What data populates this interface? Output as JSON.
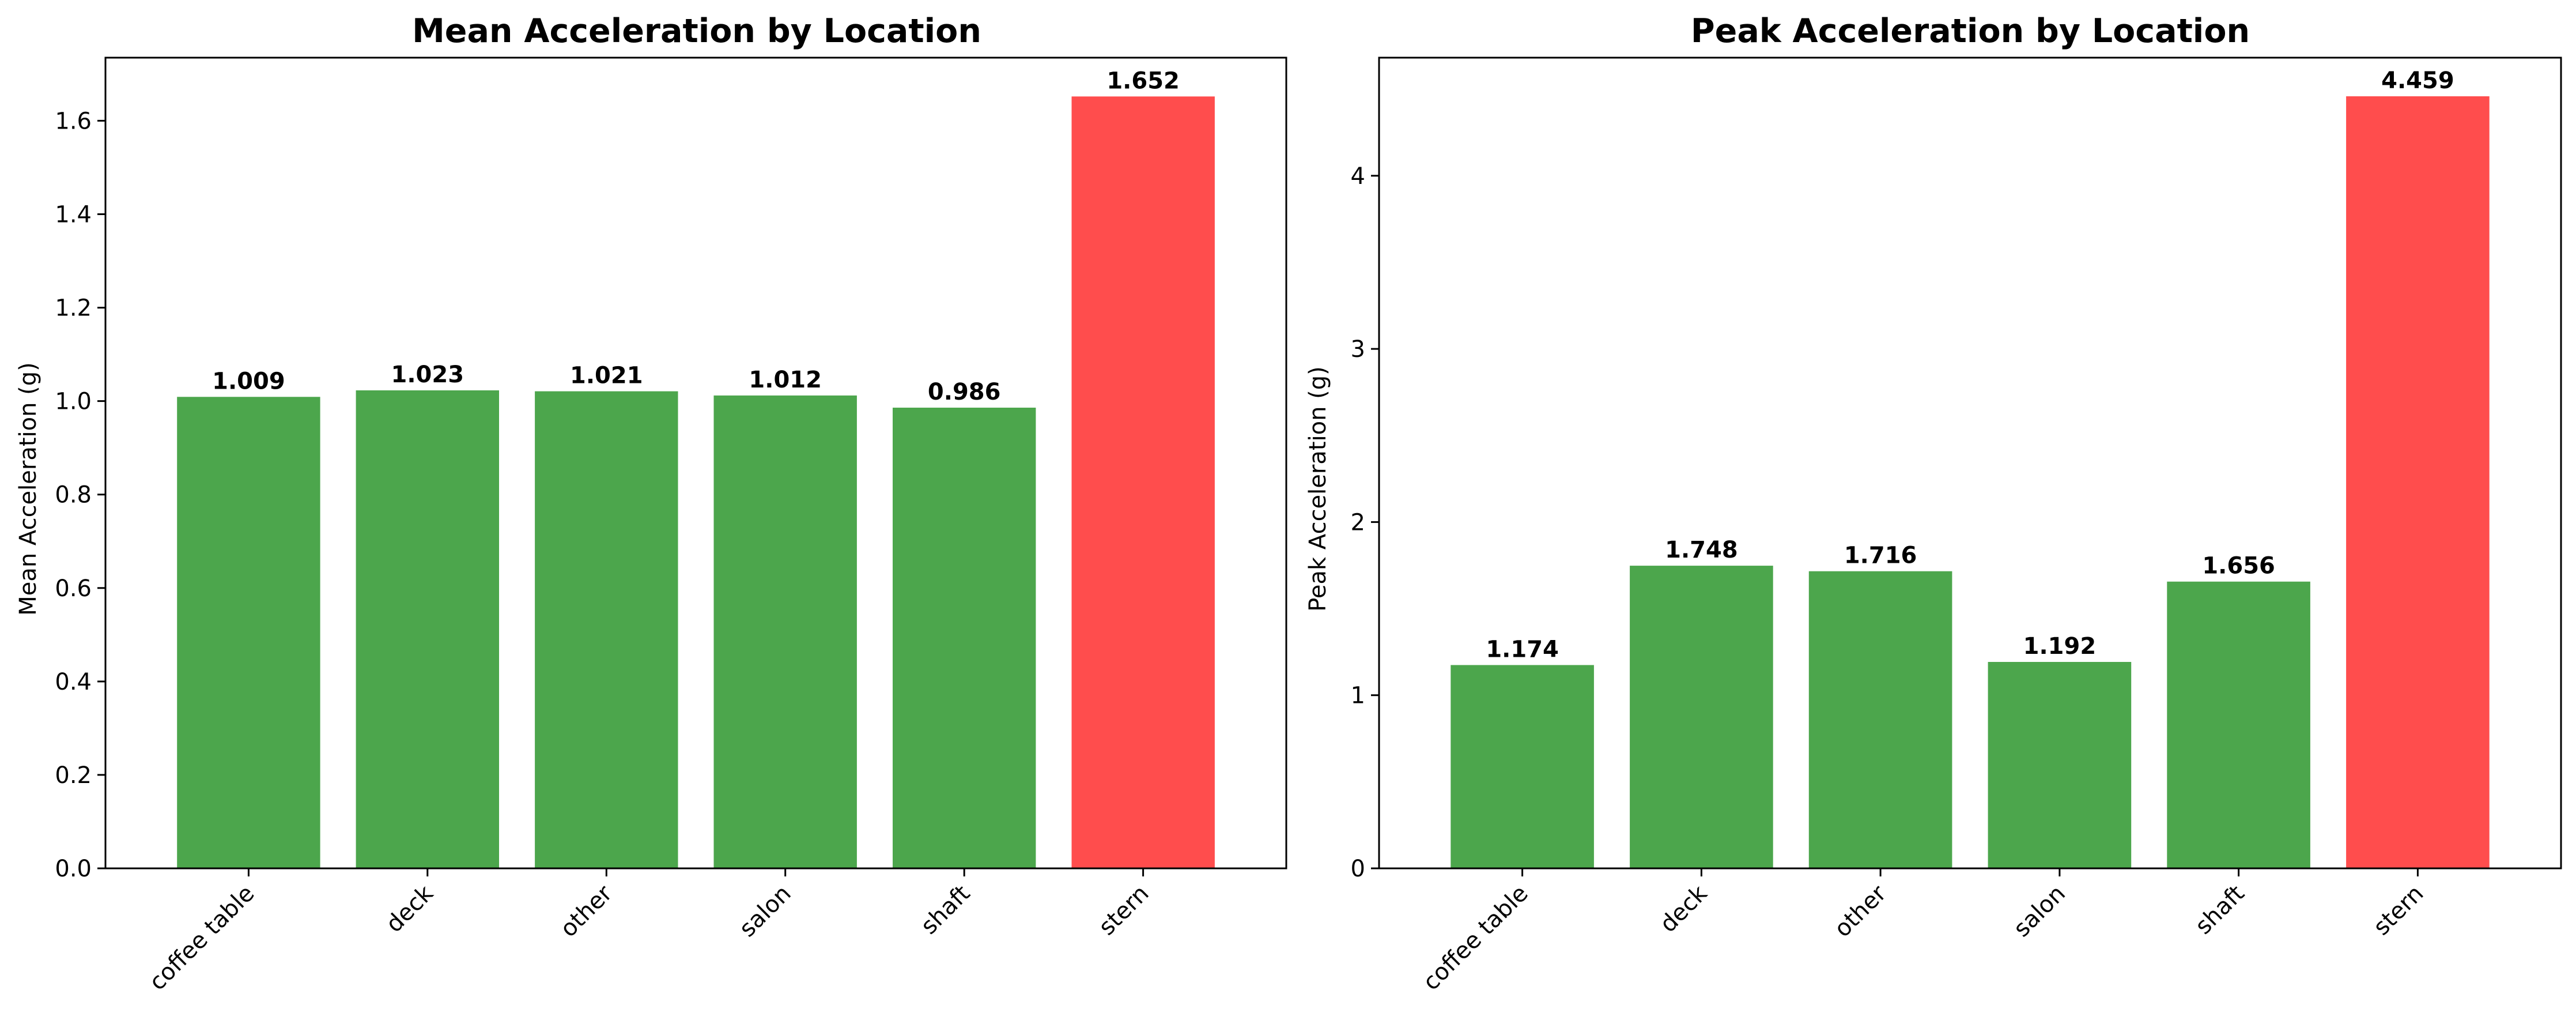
{
  "chart_data": [
    {
      "type": "bar",
      "title": "Mean Acceleration by Location",
      "xlabel": "",
      "ylabel": "Mean Acceleration (g)",
      "categories": [
        "coffee table",
        "deck",
        "other",
        "salon",
        "shaft",
        "stern"
      ],
      "values": [
        1.009,
        1.023,
        1.021,
        1.012,
        0.986,
        1.652
      ],
      "value_labels": [
        "1.009",
        "1.023",
        "1.021",
        "1.012",
        "0.986",
        "1.652"
      ],
      "bar_colors": [
        "#4ca64c",
        "#4ca64c",
        "#4ca64c",
        "#4ca64c",
        "#4ca64c",
        "#ff4d4d"
      ],
      "ylim": [
        0,
        1.735
      ],
      "yticks": [
        0.0,
        0.2,
        0.4,
        0.6,
        0.8,
        1.0,
        1.2,
        1.4,
        1.6
      ],
      "ytick_labels": [
        "0.0",
        "0.2",
        "0.4",
        "0.6",
        "0.8",
        "1.0",
        "1.2",
        "1.4",
        "1.6"
      ],
      "grid": false,
      "legend": "none"
    },
    {
      "type": "bar",
      "title": "Peak Acceleration by Location",
      "xlabel": "",
      "ylabel": "Peak Acceleration (g)",
      "categories": [
        "coffee table",
        "deck",
        "other",
        "salon",
        "shaft",
        "stern"
      ],
      "values": [
        1.174,
        1.748,
        1.716,
        1.192,
        1.656,
        4.459
      ],
      "value_labels": [
        "1.174",
        "1.748",
        "1.716",
        "1.192",
        "1.656",
        "4.459"
      ],
      "bar_colors": [
        "#4ca64c",
        "#4ca64c",
        "#4ca64c",
        "#4ca64c",
        "#4ca64c",
        "#ff4d4d"
      ],
      "ylim": [
        0,
        4.682
      ],
      "yticks": [
        0,
        1,
        2,
        3,
        4
      ],
      "ytick_labels": [
        "0",
        "1",
        "2",
        "3",
        "4"
      ],
      "grid": false,
      "legend": "none"
    }
  ]
}
